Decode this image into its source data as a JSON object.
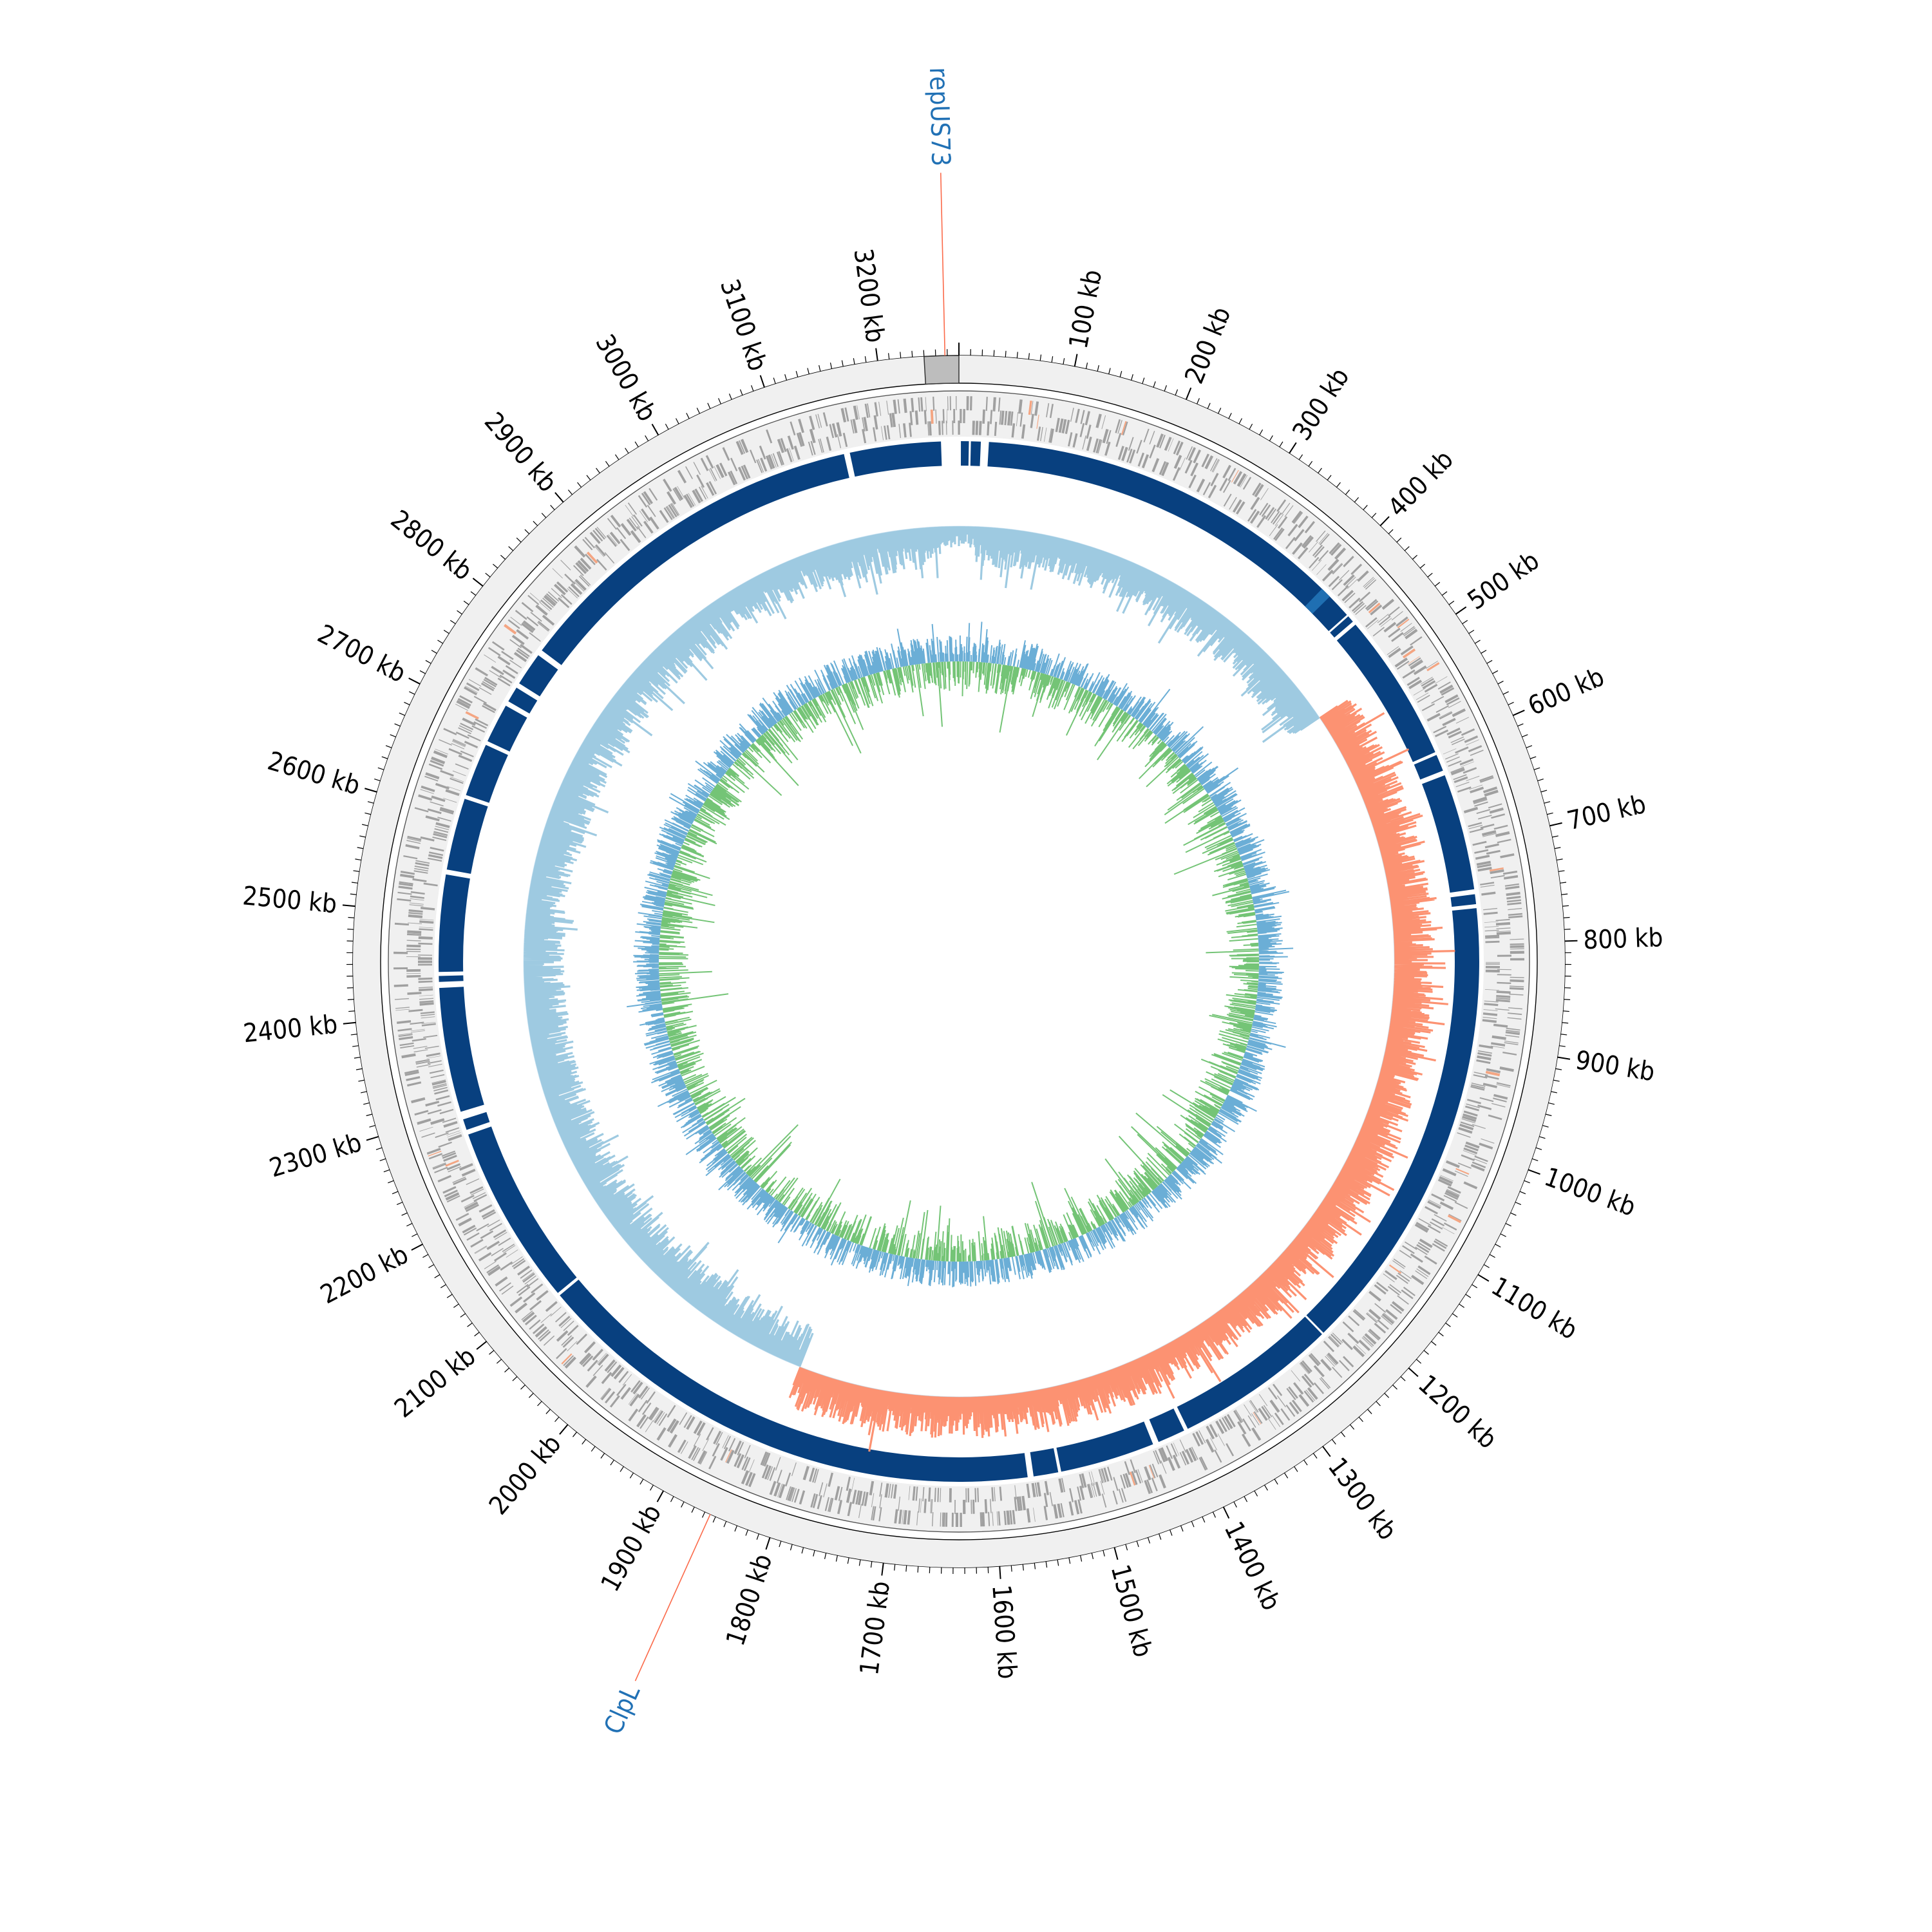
{
  "diagram": {
    "type": "circular-genome-map",
    "genome_length_kb": 3270,
    "tick_labels": [
      {
        "kb": 100,
        "label": "100 kb"
      },
      {
        "kb": 200,
        "label": "200 kb"
      },
      {
        "kb": 300,
        "label": "300 kb"
      },
      {
        "kb": 400,
        "label": "400 kb"
      },
      {
        "kb": 500,
        "label": "500 kb"
      },
      {
        "kb": 600,
        "label": "600 kb"
      },
      {
        "kb": 700,
        "label": "700 kb"
      },
      {
        "kb": 800,
        "label": "800 kb"
      },
      {
        "kb": 900,
        "label": "900 kb"
      },
      {
        "kb": 1000,
        "label": "1000 kb"
      },
      {
        "kb": 1100,
        "label": "1100 kb"
      },
      {
        "kb": 1200,
        "label": "1200 kb"
      },
      {
        "kb": 1300,
        "label": "1300 kb"
      },
      {
        "kb": 1400,
        "label": "1400 kb"
      },
      {
        "kb": 1500,
        "label": "1500 kb"
      },
      {
        "kb": 1600,
        "label": "1600 kb"
      },
      {
        "kb": 1700,
        "label": "1700 kb"
      },
      {
        "kb": 1800,
        "label": "1800 kb"
      },
      {
        "kb": 1900,
        "label": "1900 kb"
      },
      {
        "kb": 2000,
        "label": "2000 kb"
      },
      {
        "kb": 2100,
        "label": "2100 kb"
      },
      {
        "kb": 2200,
        "label": "2200 kb"
      },
      {
        "kb": 2300,
        "label": "2300 kb"
      },
      {
        "kb": 2400,
        "label": "2400 kb"
      },
      {
        "kb": 2500,
        "label": "2500 kb"
      },
      {
        "kb": 2600,
        "label": "2600 kb"
      },
      {
        "kb": 2700,
        "label": "2700 kb"
      },
      {
        "kb": 2800,
        "label": "2800 kb"
      },
      {
        "kb": 2900,
        "label": "2900 kb"
      },
      {
        "kb": 3000,
        "label": "3000 kb"
      },
      {
        "kb": 3100,
        "label": "3100 kb"
      },
      {
        "kb": 3200,
        "label": "3200 kb"
      }
    ],
    "gene_labels": [
      {
        "label": "repUS73",
        "kb": 3258
      },
      {
        "label": "ClpL",
        "kb": 1855
      }
    ],
    "colors": {
      "ring_background": "#f0f0f0",
      "highlight_block": "#bdbdbd",
      "features": "#a0a0a0",
      "feature_highlight": "#f4a582",
      "contig_band": "#08407f",
      "skew_negative": "#9ecae1",
      "skew_positive": "#fc9272",
      "content_green": "#74c476",
      "content_blue": "#6baed6",
      "gene_label": "#2171b5",
      "label_line": "#fb6a4a"
    }
  }
}
